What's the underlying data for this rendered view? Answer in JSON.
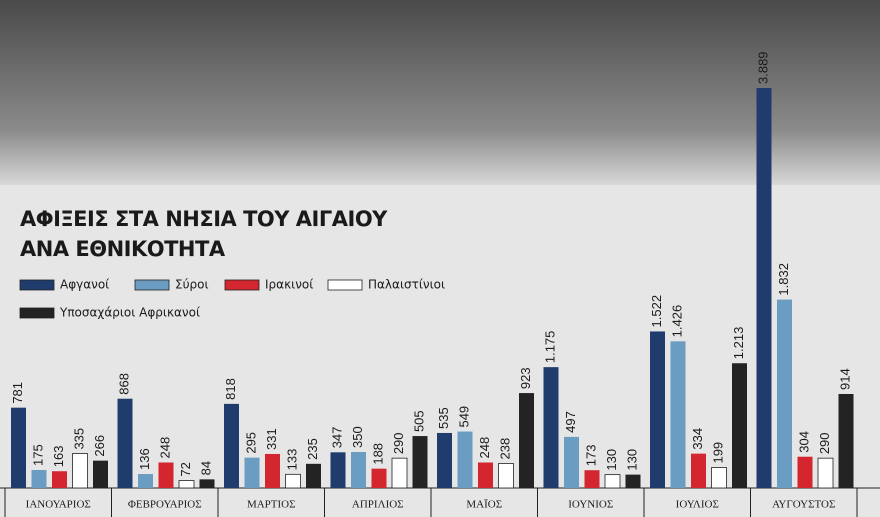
{
  "chart_data": {
    "type": "bar",
    "title": [
      "ΑΦΙΞΕΙΣ ΣΤΑ ΝΗΣΙΑ ΤΟΥ ΑΙΓΑΙΟΥ",
      "ΑΝΑ ΕΘΝΙΚΟΤΗΤΑ"
    ],
    "categories": [
      "ΙΑΝΟΥΑΡΙΟΣ",
      "ΦΕΒΡΟΥΑΡΙΟΣ",
      "ΜΑΡΤΙΟΣ",
      "ΑΠΡΙΛΙΟΣ",
      "ΜΑΪΟΣ",
      "ΙΟΥΝΙΟΣ",
      "ΙΟΥΛΙΟΣ",
      "ΑΥΓΟΥΣΤΟΣ"
    ],
    "series": [
      {
        "name": "Αφγανοί",
        "color": "#1f3c6c",
        "values": [
          781,
          868,
          818,
          347,
          535,
          1175,
          1522,
          3889
        ],
        "value_labels": [
          "781",
          "868",
          "818",
          "347",
          "535",
          "1.175",
          "1.522",
          "3.889"
        ]
      },
      {
        "name": "Σύροι",
        "color": "#6b9dc3",
        "values": [
          175,
          136,
          295,
          350,
          549,
          497,
          1426,
          1832
        ],
        "value_labels": [
          "175",
          "136",
          "295",
          "350",
          "549",
          "497",
          "1.426",
          "1.832"
        ]
      },
      {
        "name": "Ιρακινοί",
        "color": "#d3262f",
        "values": [
          163,
          248,
          331,
          188,
          248,
          173,
          334,
          304
        ],
        "value_labels": [
          "163",
          "248",
          "331",
          "188",
          "248",
          "173",
          "334",
          "304"
        ]
      },
      {
        "name": "Παλαιστίνιοι",
        "color": "#ffffff",
        "values": [
          335,
          72,
          133,
          290,
          238,
          130,
          199,
          290
        ],
        "value_labels": [
          "335",
          "72",
          "133",
          "290",
          "238",
          "130",
          "199",
          "290"
        ]
      },
      {
        "name": "Υποσαχάριοι Αφρικανοί",
        "color": "#232323",
        "values": [
          266,
          84,
          235,
          505,
          923,
          130,
          1213,
          914
        ],
        "value_labels": [
          "266",
          "84",
          "235",
          "505",
          "923",
          "130",
          "1.213",
          "914"
        ]
      }
    ]
  }
}
